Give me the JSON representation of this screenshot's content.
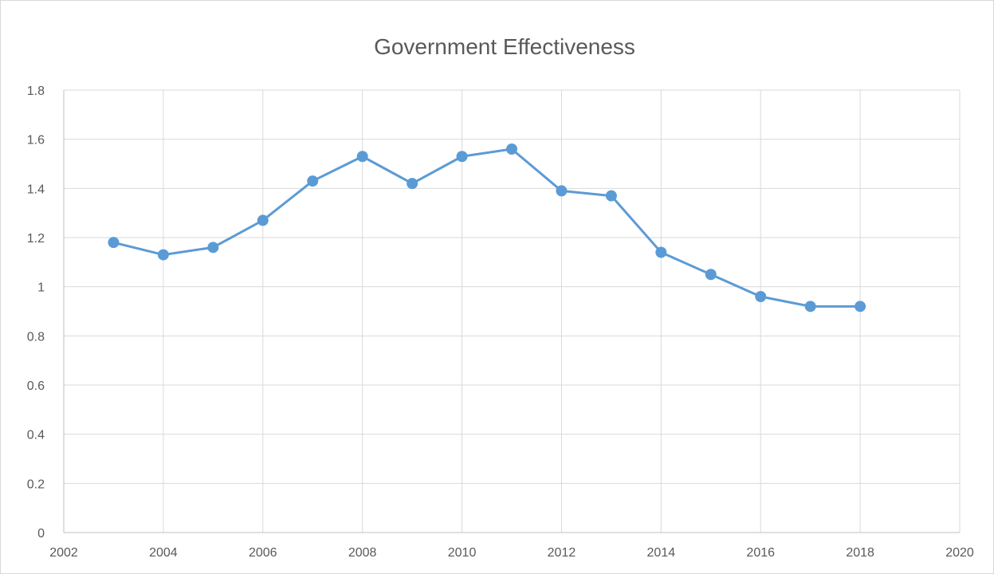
{
  "chart_data": {
    "type": "scatter",
    "title": "Government Effectiveness",
    "xlabel": "",
    "ylabel": "",
    "xlim": [
      2002,
      2020
    ],
    "ylim": [
      0,
      1.8
    ],
    "x_ticks": [
      "2002",
      "2004",
      "2006",
      "2008",
      "2010",
      "2012",
      "2014",
      "2016",
      "2018",
      "2020"
    ],
    "y_ticks": [
      "0",
      "0.2",
      "0.4",
      "0.6",
      "0.8",
      "1",
      "1.2",
      "1.4",
      "1.6",
      "1.8"
    ],
    "grid": true,
    "legend": "none",
    "line_color": "#5b9bd5",
    "series": [
      {
        "x": [
          2003,
          2004,
          2005,
          2006,
          2007,
          2008,
          2009,
          2010,
          2011,
          2012,
          2013,
          2014,
          2015,
          2016,
          2017,
          2018
        ],
        "y": [
          1.18,
          1.13,
          1.16,
          1.27,
          1.43,
          1.53,
          1.42,
          1.53,
          1.56,
          1.39,
          1.37,
          1.14,
          1.05,
          0.96,
          0.92,
          0.92
        ]
      }
    ]
  }
}
